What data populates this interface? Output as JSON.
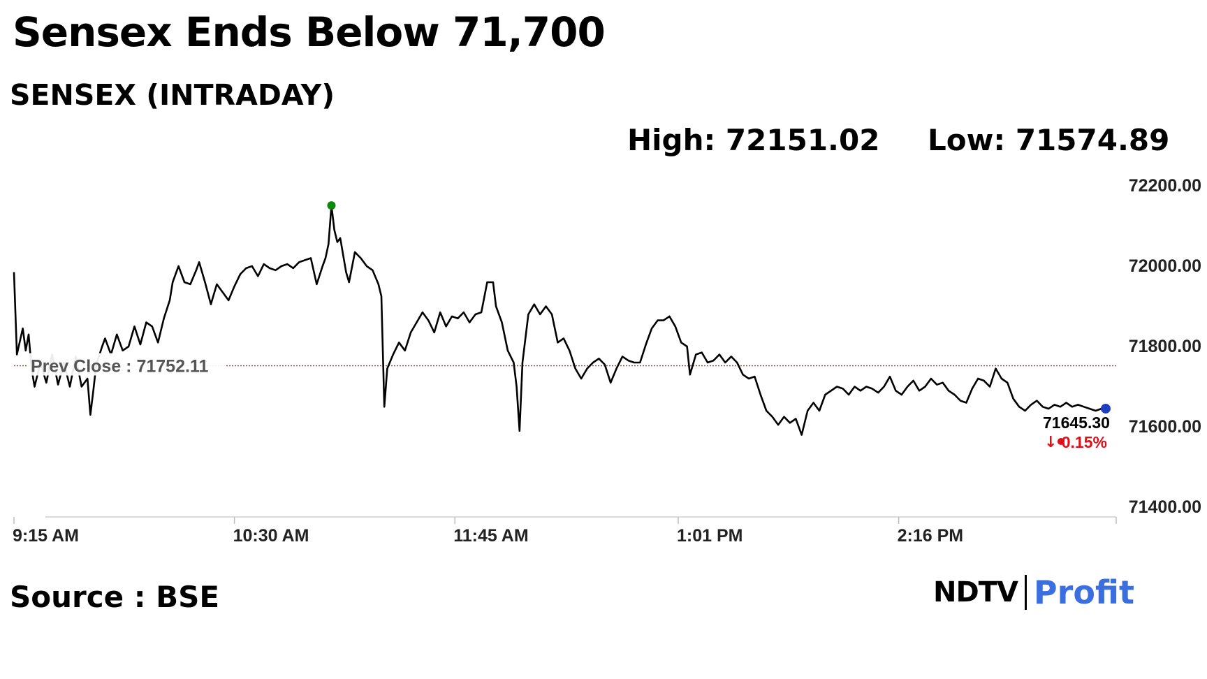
{
  "headline": "Sensex Ends Below 71,700",
  "subtitle": "SENSEX (INTRADAY)",
  "stats": {
    "high": "High: 72151.02",
    "low": "Low: 71574.89"
  },
  "source": "Source : BSE",
  "logo": {
    "left": "NDTV",
    "right": "Profit"
  },
  "colors": {
    "line": "#000000",
    "prev_close": "#c0392b",
    "high_marker": "#0a8a0a",
    "last_marker": "#1f3fbf",
    "change": "#e0101a",
    "profit_brand": "#3b6fe0"
  },
  "chart_data": {
    "type": "line",
    "title": "SENSEX (INTRADAY)",
    "x_ticks": [
      "9:15 AM",
      "10:30 AM",
      "11:45 AM",
      "1:01 PM",
      "2:16 PM"
    ],
    "x_tick_minutes": [
      0,
      75,
      150,
      226,
      301
    ],
    "y_ticks": [
      "72200.00",
      "72000.00",
      "71800.00",
      "71600.00",
      "71400.00"
    ],
    "y_tick_values": [
      72200,
      72000,
      71800,
      71600,
      71400
    ],
    "ylim": [
      71400,
      72200
    ],
    "xlim_minutes": [
      0,
      375
    ],
    "grid": false,
    "prev_close": {
      "label": "Prev Close : 71752.11",
      "value": 71752.11
    },
    "last": {
      "label": "71645.30",
      "value": 71645.3,
      "change": "0.15%"
    },
    "high_point": {
      "minute": 108,
      "value": 72151.02
    },
    "series": [
      {
        "points": [
          [
            0,
            71985
          ],
          [
            1,
            71780
          ],
          [
            3,
            71845
          ],
          [
            4,
            71790
          ],
          [
            5,
            71830
          ],
          [
            6,
            71745
          ],
          [
            7,
            71700
          ],
          [
            9,
            71760
          ],
          [
            11,
            71710
          ],
          [
            13,
            71780
          ],
          [
            15,
            71705
          ],
          [
            17,
            71760
          ],
          [
            19,
            71700
          ],
          [
            21,
            71775
          ],
          [
            23,
            71700
          ],
          [
            25,
            71720
          ],
          [
            26,
            71630
          ],
          [
            27,
            71690
          ],
          [
            28,
            71755
          ],
          [
            30,
            71800
          ],
          [
            31,
            71820
          ],
          [
            33,
            71780
          ],
          [
            35,
            71830
          ],
          [
            37,
            71790
          ],
          [
            39,
            71800
          ],
          [
            41,
            71850
          ],
          [
            43,
            71805
          ],
          [
            45,
            71860
          ],
          [
            47,
            71850
          ],
          [
            49,
            71810
          ],
          [
            51,
            71870
          ],
          [
            53,
            71915
          ],
          [
            54,
            71960
          ],
          [
            56,
            72000
          ],
          [
            58,
            71960
          ],
          [
            60,
            71955
          ],
          [
            62,
            71990
          ],
          [
            63,
            72010
          ],
          [
            65,
            71960
          ],
          [
            67,
            71905
          ],
          [
            69,
            71955
          ],
          [
            71,
            71935
          ],
          [
            73,
            71915
          ],
          [
            75,
            71950
          ],
          [
            77,
            71980
          ],
          [
            79,
            71995
          ],
          [
            81,
            72000
          ],
          [
            83,
            71975
          ],
          [
            85,
            72005
          ],
          [
            87,
            71995
          ],
          [
            89,
            71990
          ],
          [
            91,
            72000
          ],
          [
            93,
            72005
          ],
          [
            95,
            71995
          ],
          [
            97,
            72010
          ],
          [
            99,
            72015
          ],
          [
            101,
            72020
          ],
          [
            103,
            71955
          ],
          [
            105,
            72000
          ],
          [
            106,
            72020
          ],
          [
            107,
            72055
          ],
          [
            108,
            72151.02
          ],
          [
            109,
            72090
          ],
          [
            110,
            72060
          ],
          [
            111,
            72070
          ],
          [
            113,
            71985
          ],
          [
            114,
            71960
          ],
          [
            116,
            72035
          ],
          [
            118,
            72020
          ],
          [
            120,
            72000
          ],
          [
            122,
            71990
          ],
          [
            124,
            71955
          ],
          [
            125,
            71925
          ],
          [
            126,
            71650
          ],
          [
            127,
            71745
          ],
          [
            129,
            71780
          ],
          [
            131,
            71810
          ],
          [
            133,
            71790
          ],
          [
            135,
            71835
          ],
          [
            137,
            71860
          ],
          [
            139,
            71885
          ],
          [
            141,
            71865
          ],
          [
            143,
            71835
          ],
          [
            145,
            71885
          ],
          [
            147,
            71850
          ],
          [
            149,
            71875
          ],
          [
            151,
            71870
          ],
          [
            153,
            71885
          ],
          [
            155,
            71860
          ],
          [
            157,
            71880
          ],
          [
            159,
            71885
          ],
          [
            161,
            71960
          ],
          [
            163,
            71960
          ],
          [
            164,
            71900
          ],
          [
            166,
            71860
          ],
          [
            168,
            71790
          ],
          [
            170,
            71760
          ],
          [
            171,
            71700
          ],
          [
            172,
            71590
          ],
          [
            173,
            71760
          ],
          [
            175,
            71880
          ],
          [
            177,
            71905
          ],
          [
            179,
            71880
          ],
          [
            181,
            71900
          ],
          [
            183,
            71880
          ],
          [
            185,
            71810
          ],
          [
            187,
            71820
          ],
          [
            189,
            71790
          ],
          [
            191,
            71745
          ],
          [
            193,
            71720
          ],
          [
            195,
            71745
          ],
          [
            197,
            71760
          ],
          [
            199,
            71770
          ],
          [
            201,
            71755
          ],
          [
            203,
            71710
          ],
          [
            205,
            71745
          ],
          [
            207,
            71775
          ],
          [
            209,
            71765
          ],
          [
            211,
            71760
          ],
          [
            213,
            71760
          ],
          [
            215,
            71805
          ],
          [
            217,
            71845
          ],
          [
            219,
            71865
          ],
          [
            221,
            71865
          ],
          [
            223,
            71875
          ],
          [
            225,
            71850
          ],
          [
            227,
            71810
          ],
          [
            229,
            71800
          ],
          [
            230,
            71730
          ],
          [
            232,
            71780
          ],
          [
            234,
            71785
          ],
          [
            236,
            71760
          ],
          [
            238,
            71765
          ],
          [
            240,
            71780
          ],
          [
            242,
            71760
          ],
          [
            244,
            71775
          ],
          [
            246,
            71760
          ],
          [
            248,
            71730
          ],
          [
            250,
            71720
          ],
          [
            252,
            71725
          ],
          [
            254,
            71680
          ],
          [
            256,
            71640
          ],
          [
            258,
            71625
          ],
          [
            260,
            71605
          ],
          [
            262,
            71625
          ],
          [
            264,
            71610
          ],
          [
            266,
            71620
          ],
          [
            268,
            71580
          ],
          [
            270,
            71640
          ],
          [
            272,
            71660
          ],
          [
            274,
            71640
          ],
          [
            276,
            71680
          ],
          [
            278,
            71690
          ],
          [
            280,
            71700
          ],
          [
            282,
            71695
          ],
          [
            284,
            71680
          ],
          [
            286,
            71700
          ],
          [
            288,
            71690
          ],
          [
            290,
            71700
          ],
          [
            292,
            71695
          ],
          [
            294,
            71685
          ],
          [
            296,
            71700
          ],
          [
            298,
            71725
          ],
          [
            300,
            71690
          ],
          [
            302,
            71680
          ],
          [
            304,
            71700
          ],
          [
            306,
            71715
          ],
          [
            308,
            71690
          ],
          [
            310,
            71700
          ],
          [
            312,
            71720
          ],
          [
            314,
            71705
          ],
          [
            316,
            71710
          ],
          [
            318,
            71690
          ],
          [
            320,
            71680
          ],
          [
            322,
            71665
          ],
          [
            324,
            71660
          ],
          [
            326,
            71695
          ],
          [
            328,
            71720
          ],
          [
            330,
            71715
          ],
          [
            332,
            71700
          ],
          [
            334,
            71745
          ],
          [
            336,
            71720
          ],
          [
            338,
            71710
          ],
          [
            340,
            71670
          ],
          [
            342,
            71650
          ],
          [
            344,
            71640
          ],
          [
            346,
            71655
          ],
          [
            348,
            71665
          ],
          [
            350,
            71650
          ],
          [
            352,
            71645
          ],
          [
            354,
            71655
          ],
          [
            356,
            71650
          ],
          [
            358,
            71660
          ],
          [
            360,
            71650
          ],
          [
            362,
            71655
          ],
          [
            364,
            71650
          ],
          [
            366,
            71645
          ],
          [
            368,
            71640
          ],
          [
            370,
            71645.3
          ]
        ]
      }
    ]
  }
}
